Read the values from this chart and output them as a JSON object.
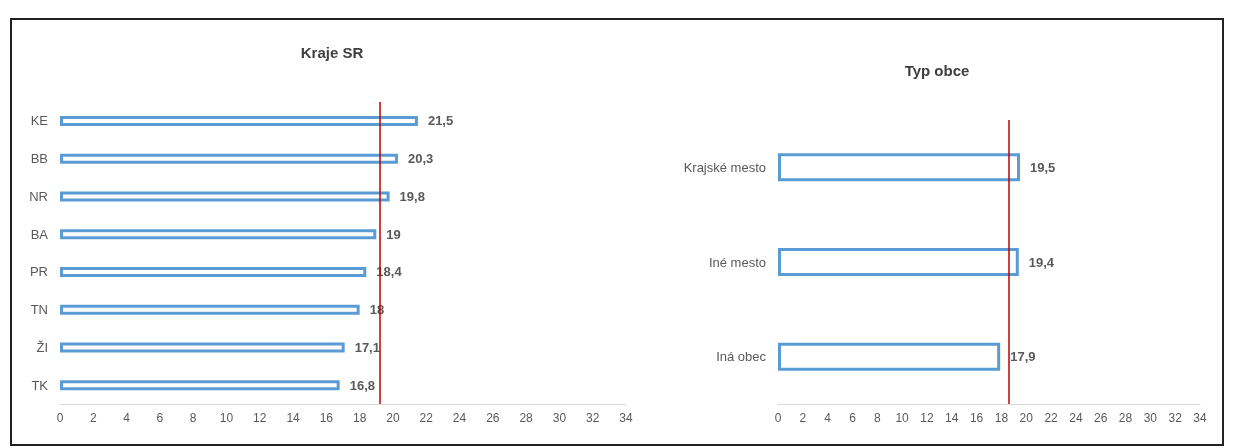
{
  "chart_data": [
    {
      "type": "bar",
      "orientation": "horizontal",
      "title": "Kraje SR",
      "categories": [
        "KE",
        "BB",
        "NR",
        "BA",
        "PR",
        "TN",
        "ŽI",
        "TK"
      ],
      "series": [
        {
          "color": "#5b9bd5",
          "values": [
            21.5,
            20.3,
            19.8,
            19,
            18.4,
            18,
            17.1,
            16.8
          ]
        }
      ],
      "value_labels": [
        "21,5",
        "20,3",
        "19,8",
        "19",
        "18,4",
        "18",
        "17,1",
        "16,8"
      ],
      "xlim": [
        0,
        34
      ],
      "xticks": [
        0,
        2,
        4,
        6,
        8,
        10,
        12,
        14,
        16,
        18,
        20,
        22,
        24,
        26,
        28,
        30,
        32,
        34
      ],
      "grid": false,
      "ref_lines": [
        {
          "axis": "x",
          "value": 19.2,
          "color": "#c00000"
        }
      ]
    },
    {
      "type": "bar",
      "orientation": "horizontal",
      "title": "Typ obce",
      "categories": [
        "Krajské mesto",
        "Iné mesto",
        "Iná obec"
      ],
      "series": [
        {
          "color": "#5b9bd5",
          "values": [
            19.5,
            19.4,
            17.9
          ]
        }
      ],
      "value_labels": [
        "19,5",
        "19,4",
        "17,9"
      ],
      "xlim": [
        0,
        34
      ],
      "xticks": [
        0,
        2,
        4,
        6,
        8,
        10,
        12,
        14,
        16,
        18,
        20,
        22,
        24,
        26,
        28,
        30,
        32,
        34
      ],
      "grid": false,
      "ref_lines": [
        {
          "axis": "x",
          "value": 18.6,
          "color": "#c00000"
        }
      ]
    }
  ]
}
